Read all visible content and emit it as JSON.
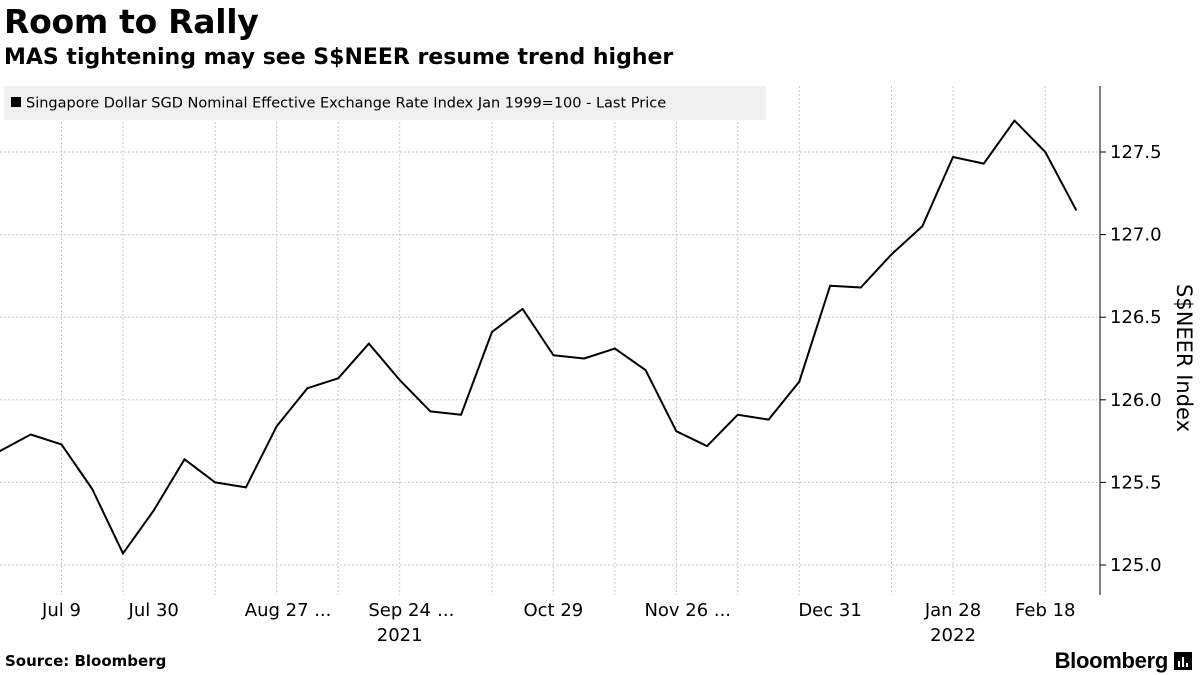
{
  "header": {
    "title": "Room to Rally",
    "subtitle": "MAS tightening may see S$NEER resume trend higher"
  },
  "footer": {
    "source": "Source: Bloomberg",
    "brand": "Bloomberg",
    "brand_icon": "bloomberg-bars-icon"
  },
  "chart_data": {
    "type": "line",
    "title": "Room to Rally",
    "subtitle": "MAS tightening may see S$NEER resume trend higher",
    "ylabel": "S$NEER Index",
    "ylim": [
      124.8,
      128.2
    ],
    "yticks": [
      125.0,
      125.5,
      126.0,
      126.5,
      127.0,
      127.5
    ],
    "ytick_labels": [
      "125.0",
      "125.5",
      "126.0",
      "126.5",
      "127.0",
      "127.5"
    ],
    "grid": true,
    "legend_position": "top-left",
    "line_color": "#000000",
    "x_tick_labels": [
      {
        "label": "Jul 9",
        "at": 2
      },
      {
        "label": "Jul 30",
        "at": 5
      },
      {
        "label": "Aug 27",
        "at": 9
      },
      {
        "label": "...",
        "at": 10.5
      },
      {
        "label": "Sep 24",
        "at": 13
      },
      {
        "label": "...",
        "at": 14.5
      },
      {
        "label": "Oct 29",
        "at": 18
      },
      {
        "label": "Nov 26",
        "at": 22
      },
      {
        "label": "...",
        "at": 23.5
      },
      {
        "label": "Dec 31",
        "at": 27
      },
      {
        "label": "Jan 28",
        "at": 31
      },
      {
        "label": "Feb 18",
        "at": 34
      }
    ],
    "x_year_labels": [
      {
        "label": "2021",
        "at": 13
      },
      {
        "label": "2022",
        "at": 31
      }
    ],
    "series": [
      {
        "name": "Singapore Dollar SGD Nominal Effective Exchange Rate Index Jan 1999=100 - Last Price",
        "values": [
          125.69,
          125.79,
          125.73,
          125.46,
          125.07,
          125.33,
          125.64,
          125.5,
          125.47,
          125.84,
          126.07,
          126.13,
          126.34,
          126.12,
          125.93,
          125.91,
          126.41,
          126.55,
          126.27,
          126.25,
          126.31,
          126.18,
          125.81,
          125.72,
          125.91,
          125.88,
          126.11,
          126.69,
          126.68,
          126.88,
          127.05,
          127.47,
          127.43,
          127.69,
          127.5,
          127.15
        ]
      }
    ]
  }
}
